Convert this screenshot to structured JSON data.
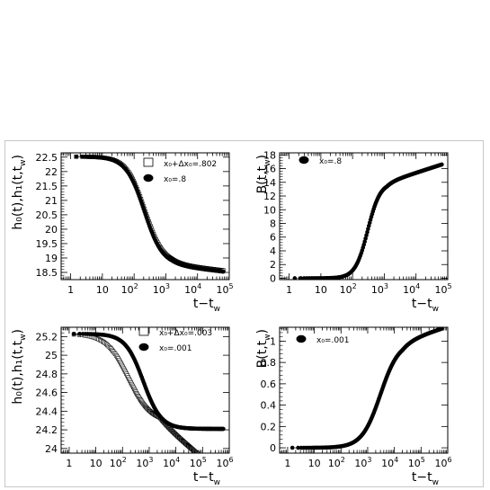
{
  "colors": {
    "ink": "#000000",
    "frame": "#c8c8c8",
    "marker_open": "#ffffff"
  },
  "chart_data": [
    {
      "id": "p1",
      "type": "scatter",
      "xscale": "log",
      "xlim": [
        0.5,
        100000
      ],
      "ylim": [
        18.25,
        22.65
      ],
      "xticks": [
        1,
        10,
        100,
        1000,
        10000,
        100000
      ],
      "xtick_labels": [
        {
          "base": "1",
          "exp": ""
        },
        {
          "base": "10",
          "exp": ""
        },
        {
          "base": "10",
          "exp": "2"
        },
        {
          "base": "10",
          "exp": "3"
        },
        {
          "base": "10",
          "exp": "4"
        },
        {
          "base": "10",
          "exp": "5"
        }
      ],
      "yticks": [
        18.5,
        19,
        19.5,
        20,
        20.5,
        21,
        21.5,
        22,
        22.5
      ],
      "ytick_labels": [
        "18.5",
        "19",
        "19.5",
        "20",
        "20.5",
        "21",
        "21.5",
        "22",
        "22.5"
      ],
      "xlabel": "t−t",
      "xlabel_sub": "w",
      "ylabel": "h₀(t),h₁(t,t",
      "ylabel_sub": "w",
      "ylabel_tail": ")",
      "legend": [
        {
          "marker": "open-square",
          "label": "x₀+Δx₀=.802"
        },
        {
          "marker": "filled-circle",
          "label": "x₀=.8"
        }
      ],
      "series": [
        {
          "name": "x₀+Δx₀=.802",
          "marker": "open-square",
          "model": {
            "kind": "sigmoid",
            "top": 22.52,
            "bottom": 18.78,
            "x0": 220,
            "n": 1.5,
            "tail": 0.13,
            "tail_x": 1500,
            "xmin": 1.5,
            "xmax": 65000,
            "npts": 170
          }
        },
        {
          "name": "x₀=.8",
          "marker": "filled-circle",
          "model": {
            "kind": "sigmoid",
            "top": 22.52,
            "bottom": 18.74,
            "x0": 210,
            "n": 1.5,
            "tail": 0.13,
            "tail_x": 1500,
            "xmin": 1.5,
            "xmax": 65000,
            "npts": 170
          }
        }
      ]
    },
    {
      "id": "p2",
      "type": "scatter",
      "xscale": "log",
      "xlim": [
        0.5,
        100000
      ],
      "ylim": [
        -0.2,
        18.3
      ],
      "xticks": [
        1,
        10,
        100,
        1000,
        10000,
        100000
      ],
      "xtick_labels": [
        {
          "base": "1",
          "exp": ""
        },
        {
          "base": "10",
          "exp": ""
        },
        {
          "base": "10",
          "exp": "2"
        },
        {
          "base": "10",
          "exp": "3"
        },
        {
          "base": "10",
          "exp": "4"
        },
        {
          "base": "10",
          "exp": "5"
        }
      ],
      "yticks": [
        0,
        2,
        4,
        6,
        8,
        10,
        12,
        14,
        16,
        18
      ],
      "ytick_labels": [
        "0",
        "2",
        "4",
        "6",
        "8",
        "10",
        "12",
        "14",
        "16",
        "18"
      ],
      "xlabel": "t−t",
      "xlabel_sub": "w",
      "ylabel": "B(t,t",
      "ylabel_sub": "w",
      "ylabel_tail": ")",
      "legend": [
        {
          "marker": "filled-circle",
          "label": "x₀=.8"
        }
      ],
      "series": [
        {
          "name": "x₀=.8",
          "marker": "filled-circle",
          "model": {
            "kind": "growth",
            "amp": 14.0,
            "x0": 300,
            "n": 2.2,
            "tail": 1.5,
            "tail_x": 1200,
            "xmin": 1.5,
            "xmax": 65000,
            "npts": 170
          }
        }
      ]
    },
    {
      "id": "p3",
      "type": "scatter",
      "xscale": "log",
      "xlim": [
        0.5,
        1000000
      ],
      "ylim": [
        23.95,
        25.3
      ],
      "xticks": [
        1,
        10,
        100,
        1000,
        10000,
        100000,
        1000000
      ],
      "xtick_labels": [
        {
          "base": "1",
          "exp": ""
        },
        {
          "base": "10",
          "exp": ""
        },
        {
          "base": "10",
          "exp": "2"
        },
        {
          "base": "10",
          "exp": "3"
        },
        {
          "base": "10",
          "exp": "4"
        },
        {
          "base": "10",
          "exp": "5"
        },
        {
          "base": "10",
          "exp": "6"
        }
      ],
      "yticks": [
        24,
        24.2,
        24.4,
        24.6,
        24.8,
        25,
        25.2
      ],
      "ytick_labels": [
        "24",
        "24.2",
        "24.4",
        "24.6",
        "24.8",
        "25",
        "25.2"
      ],
      "xlabel": "t−t",
      "xlabel_sub": "w",
      "ylabel": "h₀(t),h₁(t,t",
      "ylabel_sub": "w",
      "ylabel_tail": ")",
      "legend": [
        {
          "marker": "open-square",
          "label": "x₀+Δx₀=.003"
        },
        {
          "marker": "filled-circle",
          "label": "x₀=.001"
        }
      ],
      "series": [
        {
          "name": "x₀+Δx₀=.003",
          "marker": "open-square",
          "model": {
            "kind": "sigmoid",
            "top": 25.23,
            "bottom": 24.28,
            "x0": 170,
            "n": 1.05,
            "tail": 0.24,
            "tail_x": 2500,
            "xmin": 1.5,
            "xmax": 600000,
            "npts": 200
          }
        },
        {
          "name": "x₀=.001",
          "marker": "filled-circle",
          "model": {
            "kind": "sigmoid",
            "top": 25.23,
            "bottom": 24.21,
            "x0": 600,
            "n": 1.3,
            "tail": 0.0,
            "tail_x": 1000,
            "xmin": 1.5,
            "xmax": 600000,
            "npts": 190
          }
        }
      ]
    },
    {
      "id": "p4",
      "type": "scatter",
      "xscale": "log",
      "xlim": [
        0.5,
        1000000
      ],
      "ylim": [
        -0.05,
        1.13
      ],
      "xticks": [
        1,
        10,
        100,
        1000,
        10000,
        100000,
        1000000
      ],
      "xtick_labels": [
        {
          "base": "1",
          "exp": ""
        },
        {
          "base": "10",
          "exp": ""
        },
        {
          "base": "10",
          "exp": "2"
        },
        {
          "base": "10",
          "exp": "3"
        },
        {
          "base": "10",
          "exp": "4"
        },
        {
          "base": "10",
          "exp": "5"
        },
        {
          "base": "10",
          "exp": "6"
        }
      ],
      "yticks": [
        0,
        0.2,
        0.4,
        0.6,
        0.8,
        1
      ],
      "ytick_labels": [
        "0",
        "0.2",
        "0.4",
        "0.6",
        "0.8",
        "1"
      ],
      "xlabel": "t−t",
      "xlabel_sub": "w",
      "ylabel": "B(t,t",
      "ylabel_sub": "w",
      "ylabel_tail": ")",
      "legend": [
        {
          "marker": "filled-circle",
          "label": "x₀=.001"
        }
      ],
      "series": [
        {
          "name": "x₀=.001",
          "marker": "filled-circle",
          "model": {
            "kind": "growth",
            "amp": 1.0,
            "x0": 3000,
            "n": 1.25,
            "tail": 0.08,
            "tail_x": 20000,
            "xmin": 1.5,
            "xmax": 600000,
            "npts": 190
          }
        }
      ]
    }
  ]
}
